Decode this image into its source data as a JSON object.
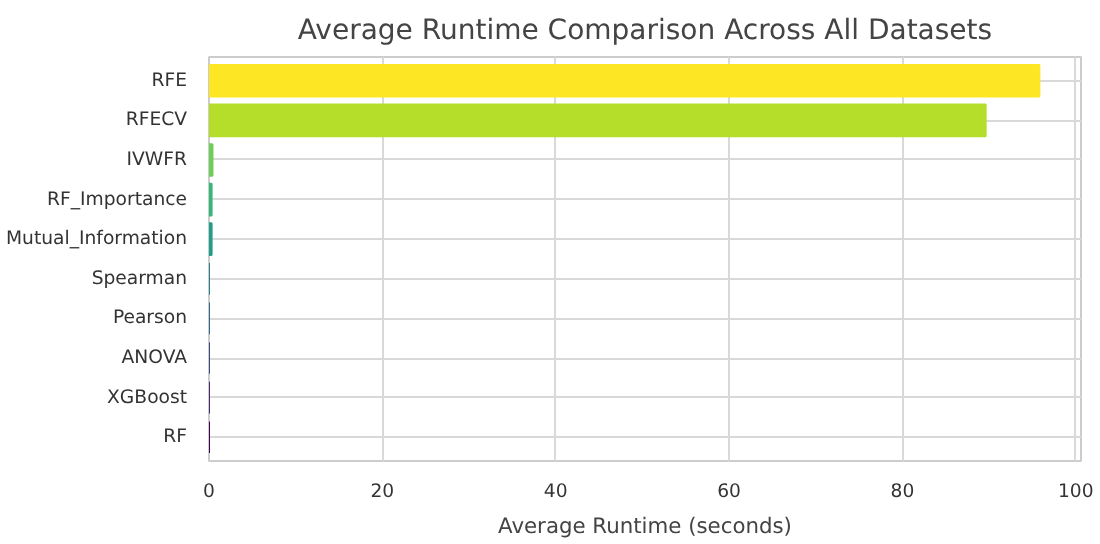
{
  "chart_data": {
    "type": "bar",
    "orientation": "horizontal",
    "title": "Average Runtime Comparison Across All Datasets",
    "xlabel": "Average Runtime (seconds)",
    "categories": [
      "RFE",
      "RFECV",
      "IVWFR",
      "RF_Importance",
      "Mutual_Information",
      "Spearman",
      "Pearson",
      "ANOVA",
      "XGBoost",
      "RF"
    ],
    "values": [
      95.8,
      89.6,
      0.4,
      0.3,
      0.3,
      0,
      0,
      0,
      0,
      0
    ],
    "colors": [
      "#fde725",
      "#b5de2b",
      "#6ece58",
      "#35b779",
      "#1f9e89",
      "#26828e",
      "#31688e",
      "#3e4989",
      "#482878",
      "#440154"
    ],
    "xlim": [
      0,
      100.6
    ],
    "xticks": [
      0,
      20,
      40,
      60,
      80,
      100
    ],
    "grid": true
  }
}
